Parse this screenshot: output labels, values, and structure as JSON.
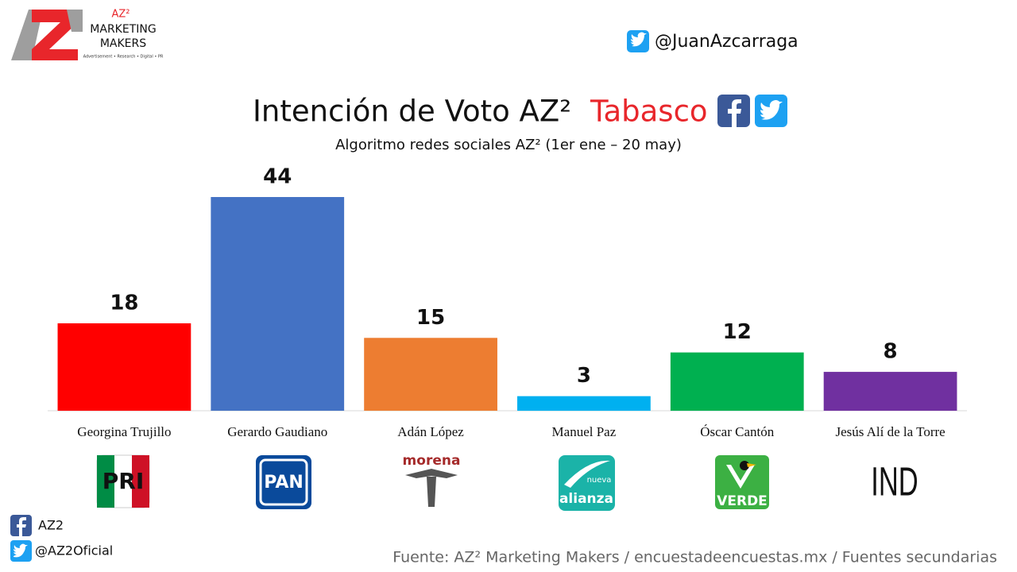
{
  "brand": {
    "mark": "AZ²",
    "line1": "MARKETING",
    "line2": "MAKERS",
    "tagline": "Advertisement • Research • Digital • PR"
  },
  "twitter_handle": "@JuanAzcarraga",
  "chart_data": {
    "type": "bar",
    "title": "Intención de Voto AZ²",
    "title_highlight": "Tabasco",
    "subtitle": "Algoritmo redes sociales AZ² (1er ene – 20 may)",
    "categories": [
      "Georgina Trujillo",
      "Gerardo Gaudiano",
      "Adán López",
      "Manuel Paz",
      "Óscar Cantón",
      "Jesús Alí de la Torre"
    ],
    "values": [
      18,
      44,
      15,
      3,
      12,
      8
    ],
    "colors": [
      "#ff0000",
      "#4472c4",
      "#ed7d31",
      "#00b0f0",
      "#00b050",
      "#7030a0"
    ],
    "party_logos": [
      {
        "text": "PRI"
      },
      {
        "text": "PAN"
      },
      {
        "text": "morena"
      },
      {
        "text": "alianza",
        "subtext": "nueva"
      },
      {
        "text": "VERDE"
      },
      {
        "text": "IND"
      }
    ]
  },
  "footer": {
    "facebook": "AZ2",
    "twitter": "@AZ2Oficial",
    "source": "Fuente: AZ² Marketing Makers / encuestadeencuestas.mx / Fuentes secundarias"
  }
}
